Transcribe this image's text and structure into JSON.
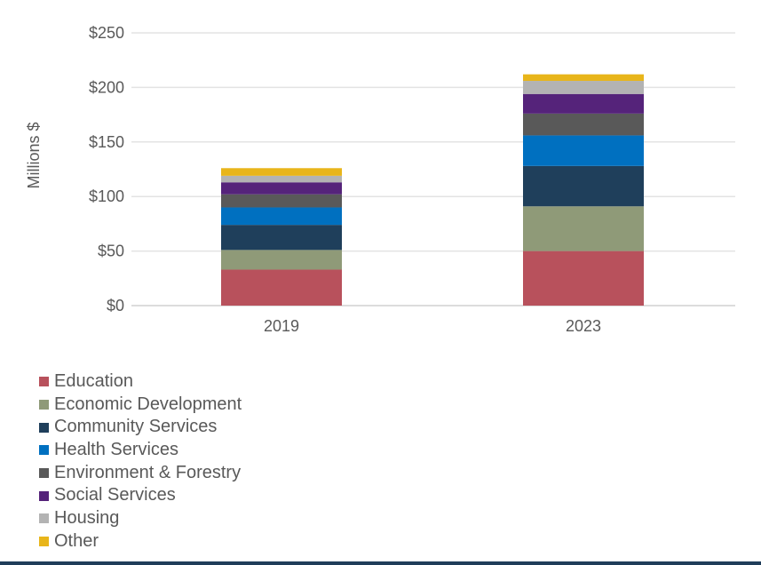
{
  "chart_data": {
    "type": "bar",
    "stacked": true,
    "categories": [
      "2019",
      "2023"
    ],
    "series": [
      {
        "name": "Education",
        "color": "#b8515c",
        "values": [
          33,
          50
        ]
      },
      {
        "name": "Economic Development",
        "color": "#8f9a78",
        "values": [
          18,
          41
        ]
      },
      {
        "name": "Community Services",
        "color": "#1f3f5b",
        "values": [
          23,
          37
        ]
      },
      {
        "name": "Health Services",
        "color": "#0070c0",
        "values": [
          16,
          28
        ]
      },
      {
        "name": "Environment & Forestry",
        "color": "#595959",
        "values": [
          12,
          20
        ]
      },
      {
        "name": "Social Services",
        "color": "#55237a",
        "values": [
          11,
          18
        ]
      },
      {
        "name": "Housing",
        "color": "#b3b3b3",
        "values": [
          6,
          12
        ]
      },
      {
        "name": "Other",
        "color": "#e8b51a",
        "values": [
          7,
          6
        ]
      }
    ],
    "ylabel": "Millions $",
    "ylim": [
      0,
      250
    ],
    "yticks": [
      0,
      50,
      100,
      150,
      200,
      250
    ],
    "ytick_labels": [
      "$0",
      "$50",
      "$100",
      "$150",
      "$200",
      "$250"
    ],
    "grid": true,
    "legend_position": "bottom-left"
  }
}
